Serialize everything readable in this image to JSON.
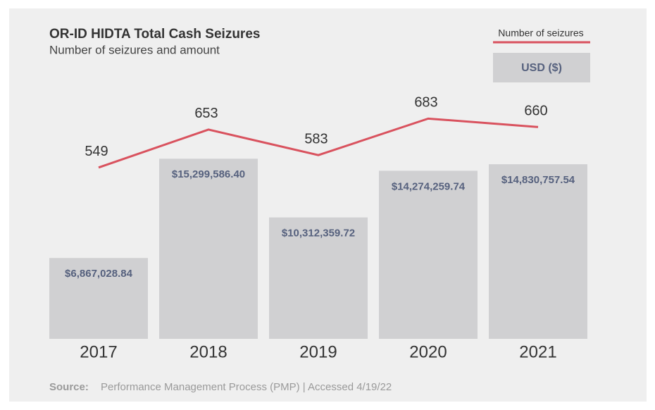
{
  "chart_data": {
    "type": "bar-line",
    "title": "OR-ID HIDTA Total Cash Seizures",
    "subtitle": "Number of seizures and amount",
    "source_label": "Source:",
    "source": "Performance Management Process (PMP) | Accessed 4/19/22",
    "categories": [
      "2017",
      "2018",
      "2019",
      "2020",
      "2021"
    ],
    "series": [
      {
        "name": "USD ($)",
        "type": "bar",
        "color": "#d0d0d2",
        "label_color": "#56617e",
        "values": [
          6867028.84,
          15299586.4,
          10312359.72,
          14274259.74,
          14830757.54
        ],
        "value_labels": [
          "$6,867,028.84",
          "$15,299,586.40",
          "$10,312,359.72",
          "$14,274,259.74",
          "$14,830,757.54"
        ]
      },
      {
        "name": "Number of seizures",
        "type": "line",
        "axis": "y2",
        "color": "#d9525e",
        "values": [
          549,
          653,
          583,
          683,
          660
        ]
      }
    ],
    "ylim": [
      0,
      21000000
    ],
    "y2lim": [
      80,
      757
    ],
    "grid": false
  }
}
